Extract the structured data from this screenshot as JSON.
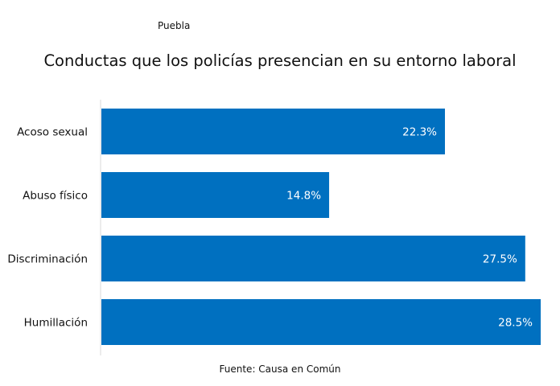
{
  "header": {
    "subtitle": "Puebla",
    "title": "Conductas que los policías presencian en su entorno laboral"
  },
  "footer": {
    "source": "Fuente: Causa en Común"
  },
  "colors": {
    "bar": "#0070C0",
    "bar_label": "#ffffff",
    "axis": "#d9d9d9",
    "text": "#111111"
  },
  "chart_data": {
    "type": "bar",
    "orientation": "horizontal",
    "title": "Conductas que los policías presencian en su entorno laboral",
    "subtitle": "Puebla",
    "categories": [
      "Acoso sexual",
      "Abuso físico",
      "Discriminación",
      "Humillación"
    ],
    "values": [
      22.3,
      14.8,
      27.5,
      28.5
    ],
    "value_labels": [
      "22.3%",
      "14.8%",
      "27.5%",
      "28.5%"
    ],
    "unit": "%",
    "xlim": [
      0,
      28.5
    ],
    "grid": false,
    "legend": "none",
    "source": "Fuente: Causa en Común"
  }
}
